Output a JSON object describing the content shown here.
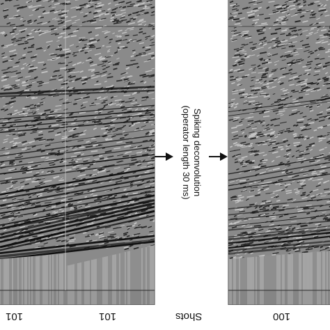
{
  "caption": {
    "line1": "Spiking deconvolution",
    "line2": "(operator length 30 ms)"
  },
  "axis_labels": {
    "left_a": "101",
    "left_b": "101",
    "center": "Shots",
    "right": "100"
  },
  "colors": {
    "background": "#ffffff",
    "seismic_base": "#8c8c8c",
    "reflector": "#111111",
    "arrow": "#111111"
  },
  "icons": {
    "arrow_left": "arrow-right-icon",
    "arrow_right": "arrow-right-icon"
  }
}
